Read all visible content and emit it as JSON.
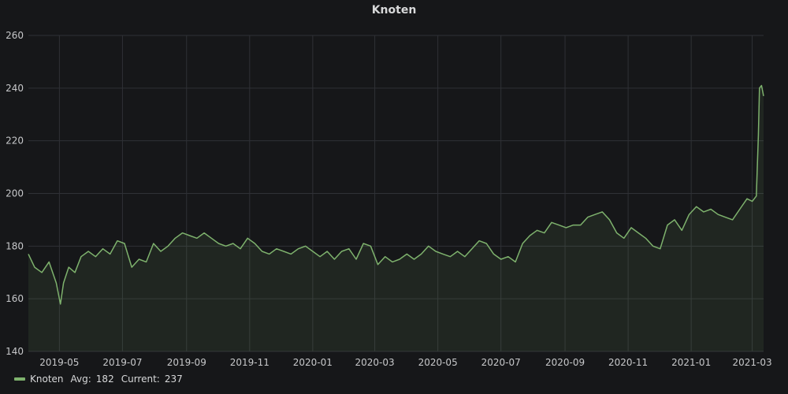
{
  "chart_data": {
    "type": "line",
    "title": "Knoten",
    "xlabel": "",
    "ylabel": "",
    "x_range": [
      "2019-04-01",
      "2021-03-12"
    ],
    "ylim": [
      140,
      260
    ],
    "yticks": [
      140,
      160,
      180,
      200,
      220,
      240,
      260
    ],
    "xticks": [
      "2019-05",
      "2019-07",
      "2019-09",
      "2019-11",
      "2020-01",
      "2020-03",
      "2020-05",
      "2020-07",
      "2020-09",
      "2020-11",
      "2021-01",
      "2021-03"
    ],
    "grid": true,
    "legend": "bottom-left",
    "series": [
      {
        "name": "Knoten",
        "color": "#7eb26d",
        "fill": true,
        "points": [
          [
            "2019-04-01",
            177
          ],
          [
            "2019-04-07",
            172
          ],
          [
            "2019-04-14",
            170
          ],
          [
            "2019-04-21",
            174
          ],
          [
            "2019-04-28",
            166
          ],
          [
            "2019-05-02",
            158
          ],
          [
            "2019-05-05",
            166
          ],
          [
            "2019-05-10",
            172
          ],
          [
            "2019-05-16",
            170
          ],
          [
            "2019-05-22",
            176
          ],
          [
            "2019-05-29",
            178
          ],
          [
            "2019-06-05",
            176
          ],
          [
            "2019-06-12",
            179
          ],
          [
            "2019-06-19",
            177
          ],
          [
            "2019-06-26",
            182
          ],
          [
            "2019-07-03",
            181
          ],
          [
            "2019-07-10",
            172
          ],
          [
            "2019-07-17",
            175
          ],
          [
            "2019-07-24",
            174
          ],
          [
            "2019-07-31",
            181
          ],
          [
            "2019-08-07",
            178
          ],
          [
            "2019-08-14",
            180
          ],
          [
            "2019-08-21",
            183
          ],
          [
            "2019-08-28",
            185
          ],
          [
            "2019-09-04",
            184
          ],
          [
            "2019-09-11",
            183
          ],
          [
            "2019-09-18",
            185
          ],
          [
            "2019-09-25",
            183
          ],
          [
            "2019-10-02",
            181
          ],
          [
            "2019-10-09",
            180
          ],
          [
            "2019-10-16",
            181
          ],
          [
            "2019-10-23",
            179
          ],
          [
            "2019-10-30",
            183
          ],
          [
            "2019-11-06",
            181
          ],
          [
            "2019-11-13",
            178
          ],
          [
            "2019-11-20",
            177
          ],
          [
            "2019-11-27",
            179
          ],
          [
            "2019-12-04",
            178
          ],
          [
            "2019-12-11",
            177
          ],
          [
            "2019-12-18",
            179
          ],
          [
            "2019-12-25",
            180
          ],
          [
            "2020-01-01",
            178
          ],
          [
            "2020-01-08",
            176
          ],
          [
            "2020-01-15",
            178
          ],
          [
            "2020-01-22",
            175
          ],
          [
            "2020-01-29",
            178
          ],
          [
            "2020-02-05",
            179
          ],
          [
            "2020-02-12",
            175
          ],
          [
            "2020-02-19",
            181
          ],
          [
            "2020-02-26",
            180
          ],
          [
            "2020-03-04",
            173
          ],
          [
            "2020-03-11",
            176
          ],
          [
            "2020-03-18",
            174
          ],
          [
            "2020-03-25",
            175
          ],
          [
            "2020-04-01",
            177
          ],
          [
            "2020-04-08",
            175
          ],
          [
            "2020-04-15",
            177
          ],
          [
            "2020-04-22",
            180
          ],
          [
            "2020-04-29",
            178
          ],
          [
            "2020-05-06",
            177
          ],
          [
            "2020-05-13",
            176
          ],
          [
            "2020-05-20",
            178
          ],
          [
            "2020-05-27",
            176
          ],
          [
            "2020-06-03",
            179
          ],
          [
            "2020-06-10",
            182
          ],
          [
            "2020-06-17",
            181
          ],
          [
            "2020-06-24",
            177
          ],
          [
            "2020-07-01",
            175
          ],
          [
            "2020-07-08",
            176
          ],
          [
            "2020-07-15",
            174
          ],
          [
            "2020-07-22",
            181
          ],
          [
            "2020-07-29",
            184
          ],
          [
            "2020-08-05",
            186
          ],
          [
            "2020-08-12",
            185
          ],
          [
            "2020-08-19",
            189
          ],
          [
            "2020-08-26",
            188
          ],
          [
            "2020-09-02",
            187
          ],
          [
            "2020-09-09",
            188
          ],
          [
            "2020-09-16",
            188
          ],
          [
            "2020-09-23",
            191
          ],
          [
            "2020-09-30",
            192
          ],
          [
            "2020-10-07",
            193
          ],
          [
            "2020-10-14",
            190
          ],
          [
            "2020-10-21",
            185
          ],
          [
            "2020-10-28",
            183
          ],
          [
            "2020-11-04",
            187
          ],
          [
            "2020-11-11",
            185
          ],
          [
            "2020-11-18",
            183
          ],
          [
            "2020-11-25",
            180
          ],
          [
            "2020-12-02",
            179
          ],
          [
            "2020-12-09",
            188
          ],
          [
            "2020-12-16",
            190
          ],
          [
            "2020-12-23",
            186
          ],
          [
            "2020-12-30",
            192
          ],
          [
            "2021-01-06",
            195
          ],
          [
            "2021-01-13",
            193
          ],
          [
            "2021-01-20",
            194
          ],
          [
            "2021-01-27",
            192
          ],
          [
            "2021-02-03",
            191
          ],
          [
            "2021-02-10",
            190
          ],
          [
            "2021-02-17",
            194
          ],
          [
            "2021-02-24",
            198
          ],
          [
            "2021-03-01",
            197
          ],
          [
            "2021-03-05",
            199
          ],
          [
            "2021-03-07",
            222
          ],
          [
            "2021-03-08",
            240
          ],
          [
            "2021-03-10",
            241
          ],
          [
            "2021-03-12",
            237
          ]
        ]
      }
    ],
    "legend_stats": {
      "avg_label": "Avg:",
      "avg_value": "182",
      "current_label": "Current:",
      "current_value": "237"
    }
  }
}
